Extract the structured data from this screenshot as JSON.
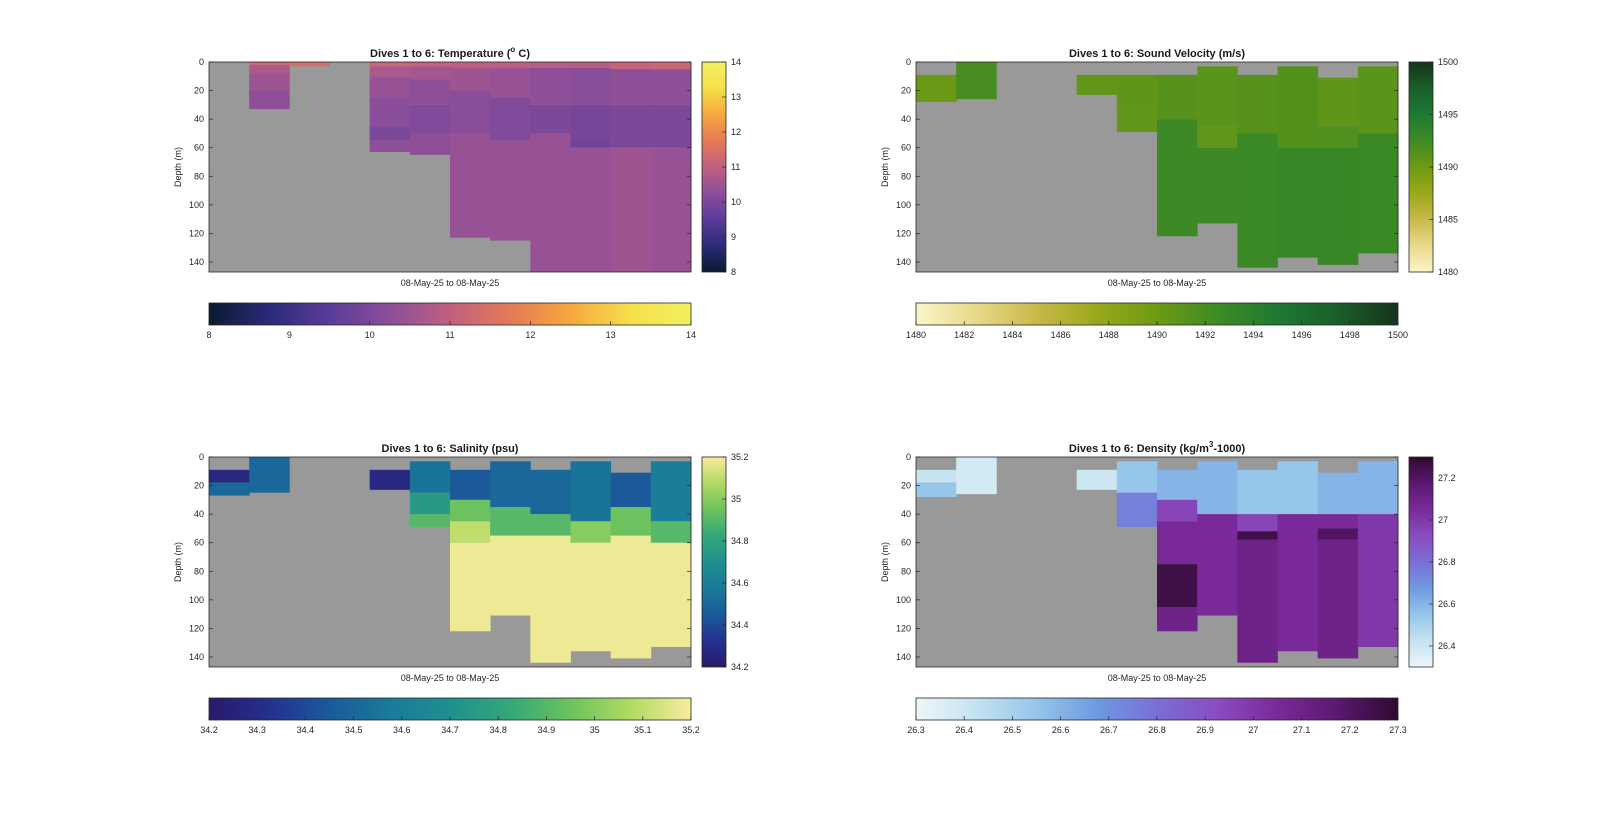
{
  "chart_data": [
    {
      "type": "heatmap",
      "title_main": "Dives 1 to 6: Temperature (",
      "title_sup": "o",
      "title_end": " C)",
      "ylabel": "Depth (m)",
      "xlabel": "08-May-25 to 08-May-25",
      "yticks": [
        0,
        20,
        40,
        60,
        80,
        100,
        120,
        140
      ],
      "ylim": [
        0,
        147
      ],
      "clim": [
        8,
        14
      ],
      "cticks_right": [
        8,
        9,
        10,
        11,
        12,
        13,
        14
      ],
      "cticks_bottom": [
        8,
        9,
        10,
        11,
        12,
        13,
        14
      ],
      "colormap": [
        "#0a1a2e",
        "#2a2a7a",
        "#5a3c9a",
        "#8c4e9a",
        "#c06080",
        "#e67a56",
        "#f6a83e",
        "#f6e04a",
        "#f2f060"
      ],
      "nodata_color": "#999999",
      "columns": [
        {
          "maxDepth": 0,
          "layers": []
        },
        {
          "maxDepth": 33,
          "layers": [
            [
              0,
              2,
              11.3
            ],
            [
              2,
              8,
              10.7
            ],
            [
              8,
              20,
              10.5
            ],
            [
              20,
              33,
              10.3
            ]
          ]
        },
        {
          "maxDepth": 3,
          "layers": [
            [
              0,
              3,
              11.4
            ]
          ]
        },
        {
          "maxDepth": 0,
          "layers": []
        },
        {
          "maxDepth": 63,
          "layers": [
            [
              0,
              3,
              11.2
            ],
            [
              3,
              10,
              10.7
            ],
            [
              10,
              25,
              10.4
            ],
            [
              25,
              45,
              10.2
            ],
            [
              45,
              55,
              10.0
            ],
            [
              55,
              63,
              10.3
            ]
          ]
        },
        {
          "maxDepth": 65,
          "layers": [
            [
              0,
              3,
              11.1
            ],
            [
              3,
              12,
              10.6
            ],
            [
              12,
              30,
              10.3
            ],
            [
              30,
              50,
              10.1
            ],
            [
              50,
              65,
              10.3
            ]
          ]
        },
        {
          "maxDepth": 123,
          "layers": [
            [
              0,
              4,
              11.0
            ],
            [
              4,
              20,
              10.5
            ],
            [
              20,
              50,
              10.2
            ],
            [
              50,
              123,
              10.4
            ]
          ]
        },
        {
          "maxDepth": 125,
          "layers": [
            [
              0,
              4,
              11.0
            ],
            [
              4,
              25,
              10.4
            ],
            [
              25,
              55,
              10.1
            ],
            [
              55,
              125,
              10.4
            ]
          ]
        },
        {
          "maxDepth": 147,
          "layers": [
            [
              0,
              4,
              10.9
            ],
            [
              4,
              30,
              10.3
            ],
            [
              30,
              50,
              10.0
            ],
            [
              50,
              147,
              10.4
            ]
          ]
        },
        {
          "maxDepth": 147,
          "layers": [
            [
              0,
              4,
              10.9
            ],
            [
              4,
              30,
              10.2
            ],
            [
              30,
              55,
              9.9
            ],
            [
              55,
              60,
              9.8
            ],
            [
              60,
              147,
              10.4
            ]
          ]
        },
        {
          "maxDepth": 147,
          "layers": [
            [
              0,
              5,
              11.1
            ],
            [
              5,
              30,
              10.3
            ],
            [
              30,
              60,
              10.0
            ],
            [
              60,
              147,
              10.5
            ]
          ]
        },
        {
          "maxDepth": 147,
          "layers": [
            [
              0,
              5,
              11.2
            ],
            [
              5,
              30,
              10.3
            ],
            [
              30,
              60,
              10.0
            ],
            [
              60,
              147,
              10.4
            ]
          ]
        }
      ]
    },
    {
      "type": "heatmap",
      "title_main": "Dives 1 to 6: Sound Velocity (m/s)",
      "title_sup": "",
      "title_end": "",
      "ylabel": "Depth (m)",
      "xlabel": "08-May-25 to 08-May-25",
      "yticks": [
        0,
        20,
        40,
        60,
        80,
        100,
        120,
        140
      ],
      "ylim": [
        0,
        147
      ],
      "clim": [
        1480,
        1500
      ],
      "cticks_right": [
        1480,
        1485,
        1490,
        1495,
        1500
      ],
      "cticks_bottom": [
        1480,
        1482,
        1484,
        1486,
        1488,
        1490,
        1492,
        1494,
        1496,
        1498,
        1500
      ],
      "colormap": [
        "#fbf6c8",
        "#e8d98a",
        "#c9b84a",
        "#9aa81a",
        "#6e9a14",
        "#3e8a24",
        "#1e7a32",
        "#1a5e2a",
        "#16341c"
      ],
      "nodata_color": "#999999",
      "columns": [
        {
          "maxDepth": 28,
          "layers": [
            [
              9,
              28,
              1490.2
            ]
          ]
        },
        {
          "maxDepth": 26,
          "layers": [
            [
              0,
              26,
              1492.0
            ]
          ]
        },
        {
          "maxDepth": 0,
          "layers": []
        },
        {
          "maxDepth": 0,
          "layers": []
        },
        {
          "maxDepth": 23,
          "layers": [
            [
              9,
              23,
              1490.6
            ]
          ]
        },
        {
          "maxDepth": 49,
          "layers": [
            [
              9,
              30,
              1490.8
            ],
            [
              30,
              49,
              1490.6
            ]
          ]
        },
        {
          "maxDepth": 122,
          "layers": [
            [
              9,
              40,
              1491.2
            ],
            [
              40,
              122,
              1492.6
            ]
          ]
        },
        {
          "maxDepth": 113,
          "layers": [
            [
              3,
              45,
              1491.0
            ],
            [
              45,
              60,
              1490.6
            ],
            [
              60,
              113,
              1492.6
            ]
          ]
        },
        {
          "maxDepth": 144,
          "layers": [
            [
              9,
              50,
              1491.2
            ],
            [
              50,
              144,
              1492.8
            ]
          ]
        },
        {
          "maxDepth": 137,
          "layers": [
            [
              3,
              60,
              1491.4
            ],
            [
              60,
              137,
              1493.0
            ]
          ]
        },
        {
          "maxDepth": 142,
          "layers": [
            [
              11,
              45,
              1490.8
            ],
            [
              45,
              60,
              1491.6
            ],
            [
              60,
              142,
              1493.0
            ]
          ]
        },
        {
          "maxDepth": 134,
          "layers": [
            [
              3,
              50,
              1491.0
            ],
            [
              50,
              134,
              1492.8
            ]
          ]
        }
      ]
    },
    {
      "type": "heatmap",
      "title_main": "Dives 1 to 6: Salinity (psu)",
      "title_sup": "",
      "title_end": "",
      "ylabel": "Depth (m)",
      "xlabel": "08-May-25 to 08-May-25",
      "yticks": [
        0,
        20,
        40,
        60,
        80,
        100,
        120,
        140
      ],
      "ylim": [
        0,
        147
      ],
      "clim": [
        34.2,
        35.2
      ],
      "cticks_right": [
        34.2,
        34.4,
        34.6,
        34.8,
        35,
        35.2
      ],
      "cticks_bottom": [
        34.2,
        34.3,
        34.4,
        34.5,
        34.6,
        34.7,
        34.8,
        34.9,
        35,
        35.1,
        35.2
      ],
      "colormap": [
        "#2a1a6a",
        "#24308e",
        "#1a5a9a",
        "#1a7a9a",
        "#1e908e",
        "#34a878",
        "#6cc25e",
        "#b2da62",
        "#f8ec9e"
      ],
      "nodata_color": "#999999",
      "columns": [
        {
          "maxDepth": 27,
          "layers": [
            [
              9,
              18,
              34.28
            ],
            [
              18,
              27,
              34.5
            ]
          ]
        },
        {
          "maxDepth": 25,
          "layers": [
            [
              0,
              25,
              34.5
            ]
          ]
        },
        {
          "maxDepth": 0,
          "layers": []
        },
        {
          "maxDepth": 0,
          "layers": []
        },
        {
          "maxDepth": 23,
          "layers": [
            [
              9,
              23,
              34.28
            ]
          ]
        },
        {
          "maxDepth": 49,
          "layers": [
            [
              3,
              25,
              34.55
            ],
            [
              25,
              40,
              34.75
            ],
            [
              40,
              49,
              34.9
            ]
          ]
        },
        {
          "maxDepth": 122,
          "layers": [
            [
              9,
              30,
              34.45
            ],
            [
              30,
              45,
              34.95
            ],
            [
              45,
              60,
              35.1
            ],
            [
              60,
              122,
              35.18
            ]
          ]
        },
        {
          "maxDepth": 111,
          "layers": [
            [
              3,
              35,
              34.5
            ],
            [
              35,
              55,
              34.9
            ],
            [
              55,
              111,
              35.18
            ]
          ]
        },
        {
          "maxDepth": 144,
          "layers": [
            [
              9,
              40,
              34.5
            ],
            [
              40,
              55,
              34.9
            ],
            [
              55,
              144,
              35.18
            ]
          ]
        },
        {
          "maxDepth": 136,
          "layers": [
            [
              3,
              45,
              34.55
            ],
            [
              45,
              60,
              35.0
            ],
            [
              60,
              136,
              35.18
            ]
          ]
        },
        {
          "maxDepth": 141,
          "layers": [
            [
              11,
              35,
              34.45
            ],
            [
              35,
              55,
              34.95
            ],
            [
              55,
              141,
              35.18
            ]
          ]
        },
        {
          "maxDepth": 133,
          "layers": [
            [
              3,
              45,
              34.6
            ],
            [
              45,
              60,
              34.9
            ],
            [
              60,
              133,
              35.18
            ]
          ]
        }
      ]
    },
    {
      "type": "heatmap",
      "title_main": "Dives 1 to 6: Density (kg/m",
      "title_sup": "3",
      "title_end": "-1000)",
      "ylabel": "Depth (m)",
      "xlabel": "08-May-25 to 08-May-25",
      "yticks": [
        0,
        20,
        40,
        60,
        80,
        100,
        120,
        140
      ],
      "ylim": [
        0,
        147
      ],
      "clim": [
        26.3,
        27.3
      ],
      "cticks_right": [
        26.4,
        26.6,
        26.8,
        27,
        27.2
      ],
      "cticks_bottom": [
        26.3,
        26.4,
        26.5,
        26.6,
        26.7,
        26.8,
        26.9,
        27,
        27.1,
        27.2,
        27.3
      ],
      "colormap": [
        "#eef6fa",
        "#c4e2f0",
        "#96c6ea",
        "#6e9ae0",
        "#7a6ed6",
        "#8a4cc0",
        "#7a2a98",
        "#5a1870",
        "#2e0a2e"
      ],
      "nodata_color": "#999999",
      "columns": [
        {
          "maxDepth": 28,
          "layers": [
            [
              9,
              18,
              26.42
            ],
            [
              18,
              28,
              26.55
            ]
          ]
        },
        {
          "maxDepth": 26,
          "layers": [
            [
              0,
              26,
              26.38
            ]
          ]
        },
        {
          "maxDepth": 0,
          "layers": []
        },
        {
          "maxDepth": 0,
          "layers": []
        },
        {
          "maxDepth": 23,
          "layers": [
            [
              9,
              23,
              26.4
            ]
          ]
        },
        {
          "maxDepth": 49,
          "layers": [
            [
              3,
              25,
              26.55
            ],
            [
              25,
              49,
              26.75
            ]
          ]
        },
        {
          "maxDepth": 122,
          "layers": [
            [
              9,
              30,
              26.6
            ],
            [
              30,
              45,
              26.95
            ],
            [
              45,
              75,
              27.05
            ],
            [
              75,
              105,
              27.25
            ],
            [
              105,
              122,
              27.1
            ]
          ]
        },
        {
          "maxDepth": 111,
          "layers": [
            [
              3,
              40,
              26.6
            ],
            [
              40,
              111,
              27.05
            ]
          ]
        },
        {
          "maxDepth": 144,
          "layers": [
            [
              9,
              40,
              26.55
            ],
            [
              40,
              52,
              26.95
            ],
            [
              52,
              58,
              27.25
            ],
            [
              58,
              144,
              27.1
            ]
          ]
        },
        {
          "maxDepth": 136,
          "layers": [
            [
              3,
              40,
              26.55
            ],
            [
              40,
              136,
              27.05
            ]
          ]
        },
        {
          "maxDepth": 141,
          "layers": [
            [
              11,
              40,
              26.6
            ],
            [
              40,
              50,
              27.05
            ],
            [
              50,
              58,
              27.2
            ],
            [
              58,
              141,
              27.1
            ]
          ]
        },
        {
          "maxDepth": 133,
          "layers": [
            [
              3,
              40,
              26.6
            ],
            [
              40,
              133,
              27.0
            ]
          ]
        }
      ]
    }
  ]
}
